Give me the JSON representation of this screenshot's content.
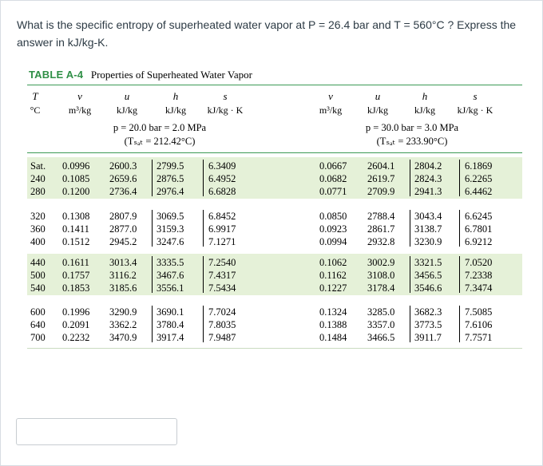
{
  "question": "What is the specific entropy of superheated water vapor at P = 26.4 bar and T = 560°C ? Express the answer in kJ/kg-K.",
  "table": {
    "label": "TABLE A-4",
    "caption": "Properties of Superheated Water Vapor",
    "header_symbols": [
      "T",
      "v",
      "u",
      "h",
      "s",
      "v",
      "u",
      "h",
      "s"
    ],
    "header_units": [
      "°C",
      "m³/kg",
      "kJ/kg",
      "kJ/kg",
      "kJ/kg · K",
      "m³/kg",
      "kJ/kg",
      "kJ/kg",
      "kJ/kg · K"
    ],
    "left_pressure": "p = 20.0 bar = 2.0 MPa",
    "left_tsat": "(Tₛₐₜ = 212.42°C)",
    "right_pressure": "p = 30.0 bar = 3.0 MPa",
    "right_tsat": "(Tₛₐₜ = 233.90°C)",
    "groups": [
      [
        {
          "T": "Sat.",
          "v1": "0.0996",
          "u1": "2600.3",
          "h1": "2799.5",
          "s1": "6.3409",
          "v2": "0.0667",
          "u2": "2604.1",
          "h2": "2804.2",
          "s2": "6.1869"
        },
        {
          "T": "240",
          "v1": "0.1085",
          "u1": "2659.6",
          "h1": "2876.5",
          "s1": "6.4952",
          "v2": "0.0682",
          "u2": "2619.7",
          "h2": "2824.3",
          "s2": "6.2265"
        },
        {
          "T": "280",
          "v1": "0.1200",
          "u1": "2736.4",
          "h1": "2976.4",
          "s1": "6.6828",
          "v2": "0.0771",
          "u2": "2709.9",
          "h2": "2941.3",
          "s2": "6.4462"
        }
      ],
      [
        {
          "T": "320",
          "v1": "0.1308",
          "u1": "2807.9",
          "h1": "3069.5",
          "s1": "6.8452",
          "v2": "0.0850",
          "u2": "2788.4",
          "h2": "3043.4",
          "s2": "6.6245"
        },
        {
          "T": "360",
          "v1": "0.1411",
          "u1": "2877.0",
          "h1": "3159.3",
          "s1": "6.9917",
          "v2": "0.0923",
          "u2": "2861.7",
          "h2": "3138.7",
          "s2": "6.7801"
        },
        {
          "T": "400",
          "v1": "0.1512",
          "u1": "2945.2",
          "h1": "3247.6",
          "s1": "7.1271",
          "v2": "0.0994",
          "u2": "2932.8",
          "h2": "3230.9",
          "s2": "6.9212"
        }
      ],
      [
        {
          "T": "440",
          "v1": "0.1611",
          "u1": "3013.4",
          "h1": "3335.5",
          "s1": "7.2540",
          "v2": "0.1062",
          "u2": "3002.9",
          "h2": "3321.5",
          "s2": "7.0520"
        },
        {
          "T": "500",
          "v1": "0.1757",
          "u1": "3116.2",
          "h1": "3467.6",
          "s1": "7.4317",
          "v2": "0.1162",
          "u2": "3108.0",
          "h2": "3456.5",
          "s2": "7.2338"
        },
        {
          "T": "540",
          "v1": "0.1853",
          "u1": "3185.6",
          "h1": "3556.1",
          "s1": "7.5434",
          "v2": "0.1227",
          "u2": "3178.4",
          "h2": "3546.6",
          "s2": "7.3474"
        }
      ],
      [
        {
          "T": "600",
          "v1": "0.1996",
          "u1": "3290.9",
          "h1": "3690.1",
          "s1": "7.7024",
          "v2": "0.1324",
          "u2": "3285.0",
          "h2": "3682.3",
          "s2": "7.5085"
        },
        {
          "T": "640",
          "v1": "0.2091",
          "u1": "3362.2",
          "h1": "3780.4",
          "s1": "7.8035",
          "v2": "0.1388",
          "u2": "3357.0",
          "h2": "3773.5",
          "s2": "7.6106"
        },
        {
          "T": "700",
          "v1": "0.2232",
          "u1": "3470.9",
          "h1": "3917.4",
          "s1": "7.9487",
          "v2": "0.1484",
          "u2": "3466.5",
          "h2": "3911.7",
          "s2": "7.7571"
        }
      ]
    ]
  },
  "answer_value": ""
}
